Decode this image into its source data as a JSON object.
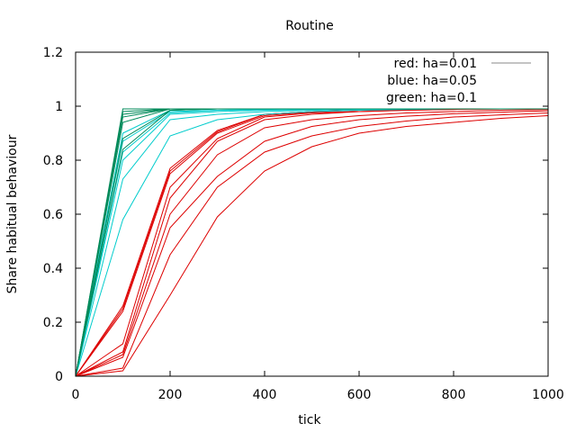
{
  "chart_data": {
    "type": "line",
    "title": "Routine",
    "xlabel": "tick",
    "ylabel": "Share habitual behaviour",
    "xlim": [
      0,
      1000
    ],
    "ylim": [
      0,
      1.2
    ],
    "xticks": [
      0,
      200,
      400,
      600,
      800,
      1000
    ],
    "xtick_labels": [
      "0",
      "200",
      "400",
      "600",
      "800",
      "1000"
    ],
    "yticks": [
      0,
      0.2,
      0.4,
      0.6,
      0.8,
      1,
      1.2
    ],
    "ytick_labels": [
      "0",
      "0.2",
      "0.4",
      "0.6",
      "0.8",
      "1",
      "1.2"
    ],
    "grid": false,
    "legend_position": "top-right",
    "legend": [
      {
        "label": "red: ha=0.01",
        "color": "#888888"
      },
      {
        "label": "blue: ha=0.05",
        "color": null
      },
      {
        "label": "green: ha=0.1",
        "color": null
      }
    ],
    "x": [
      0,
      100,
      200,
      300,
      400,
      500,
      600,
      700,
      800,
      900,
      1000
    ],
    "series": [
      {
        "group": "red",
        "color": "#dd0000",
        "values": [
          0,
          0.02,
          0.3,
          0.59,
          0.76,
          0.85,
          0.9,
          0.925,
          0.94,
          0.955,
          0.965
        ]
      },
      {
        "group": "red",
        "color": "#dd0000",
        "values": [
          0,
          0.03,
          0.45,
          0.7,
          0.83,
          0.89,
          0.925,
          0.945,
          0.96,
          0.968,
          0.975
        ]
      },
      {
        "group": "red",
        "color": "#dd0000",
        "values": [
          0,
          0.07,
          0.55,
          0.74,
          0.87,
          0.925,
          0.95,
          0.963,
          0.972,
          0.978,
          0.983
        ]
      },
      {
        "group": "red",
        "color": "#dd0000",
        "values": [
          0,
          0.08,
          0.6,
          0.82,
          0.92,
          0.95,
          0.965,
          0.975,
          0.98,
          0.985,
          0.988
        ]
      },
      {
        "group": "red",
        "color": "#dd0000",
        "values": [
          0,
          0.09,
          0.66,
          0.87,
          0.95,
          0.97,
          0.98,
          0.985,
          0.988,
          0.99,
          0.99
        ]
      },
      {
        "group": "red",
        "color": "#dd0000",
        "values": [
          0,
          0.12,
          0.7,
          0.88,
          0.96,
          0.975,
          0.98,
          0.985,
          0.988,
          0.99,
          0.99
        ]
      },
      {
        "group": "red",
        "color": "#dd0000",
        "values": [
          0,
          0.24,
          0.75,
          0.9,
          0.965,
          0.978,
          0.985,
          0.988,
          0.99,
          0.99,
          0.99
        ]
      },
      {
        "group": "red",
        "color": "#dd0000",
        "values": [
          0,
          0.25,
          0.76,
          0.905,
          0.97,
          0.98,
          0.985,
          0.988,
          0.99,
          0.99,
          0.99
        ]
      },
      {
        "group": "red",
        "color": "#dd0000",
        "values": [
          0,
          0.26,
          0.77,
          0.91,
          0.97,
          0.98,
          0.986,
          0.988,
          0.99,
          0.99,
          0.99
        ]
      },
      {
        "group": "cyan",
        "color": "#00cccc",
        "values": [
          0,
          0.58,
          0.89,
          0.95,
          0.97,
          0.98,
          0.985,
          0.988,
          0.99,
          0.99,
          0.99
        ]
      },
      {
        "group": "cyan",
        "color": "#00cccc",
        "values": [
          0,
          0.73,
          0.95,
          0.97,
          0.98,
          0.985,
          0.988,
          0.99,
          0.99,
          0.99,
          0.99
        ]
      },
      {
        "group": "cyan",
        "color": "#00cccc",
        "values": [
          0,
          0.8,
          0.97,
          0.98,
          0.985,
          0.988,
          0.99,
          0.99,
          0.99,
          0.99,
          0.99
        ]
      },
      {
        "group": "cyan",
        "color": "#00cccc",
        "values": [
          0,
          0.83,
          0.975,
          0.985,
          0.988,
          0.99,
          0.99,
          0.99,
          0.99,
          0.99,
          0.99
        ]
      },
      {
        "group": "cyan",
        "color": "#00cccc",
        "values": [
          0,
          0.87,
          0.98,
          0.985,
          0.988,
          0.99,
          0.99,
          0.99,
          0.99,
          0.99,
          0.99
        ]
      },
      {
        "group": "cyan",
        "color": "#00cccc",
        "values": [
          0,
          0.9,
          0.985,
          0.99,
          0.99,
          0.99,
          0.99,
          0.99,
          0.99,
          0.99,
          0.99
        ]
      },
      {
        "group": "green",
        "color": "#008a5a",
        "values": [
          0,
          0.84,
          0.985,
          0.99,
          0.99,
          0.99,
          0.99,
          0.99,
          0.99,
          0.99,
          0.99
        ]
      },
      {
        "group": "green",
        "color": "#008a5a",
        "values": [
          0,
          0.88,
          0.985,
          0.99,
          0.99,
          0.99,
          0.99,
          0.99,
          0.99,
          0.99,
          0.99
        ]
      },
      {
        "group": "green",
        "color": "#008a5a",
        "values": [
          0,
          0.94,
          0.99,
          0.99,
          0.99,
          0.99,
          0.99,
          0.99,
          0.99,
          0.99,
          0.99
        ]
      },
      {
        "group": "green",
        "color": "#008a5a",
        "values": [
          0,
          0.96,
          0.99,
          0.99,
          0.99,
          0.99,
          0.99,
          0.99,
          0.99,
          0.99,
          0.99
        ]
      },
      {
        "group": "green",
        "color": "#008a5a",
        "values": [
          0,
          0.97,
          0.99,
          0.99,
          0.99,
          0.99,
          0.99,
          0.99,
          0.99,
          0.99,
          0.99
        ]
      },
      {
        "group": "green",
        "color": "#008a5a",
        "values": [
          0,
          0.98,
          0.99,
          0.99,
          0.99,
          0.99,
          0.99,
          0.99,
          0.99,
          0.99,
          0.99
        ]
      },
      {
        "group": "green",
        "color": "#008a5a",
        "values": [
          0,
          0.99,
          0.99,
          0.99,
          0.99,
          0.99,
          0.99,
          0.99,
          0.99,
          0.99,
          0.99
        ]
      }
    ]
  }
}
